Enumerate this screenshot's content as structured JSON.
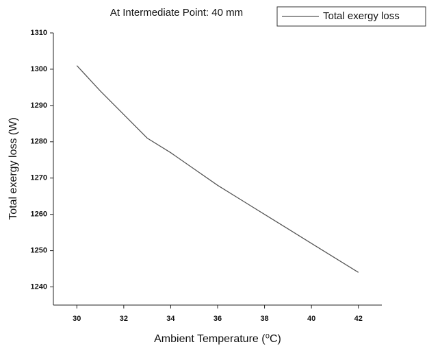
{
  "chart_data": {
    "type": "line",
    "title": "At Intermediate Point: 40 mm",
    "x_label": "Ambient Temperature (⁰C)",
    "y_label": "Total exergy loss (W)",
    "x": [
      30,
      31,
      32,
      33,
      34,
      35,
      36,
      37,
      38,
      39,
      40,
      41,
      42
    ],
    "series": [
      {
        "name": "Total exergy loss",
        "color": "#555555",
        "values": [
          1301,
          1294,
          1287.5,
          1281,
          1277,
          1272.5,
          1268,
          1264,
          1260,
          1256,
          1252,
          1248,
          1244
        ]
      }
    ],
    "xlim": [
      29,
      43
    ],
    "xticks": [
      30,
      32,
      34,
      36,
      38,
      40,
      42
    ],
    "ylim": [
      1235,
      1310
    ],
    "yticks": [
      1240,
      1250,
      1260,
      1270,
      1280,
      1290,
      1300,
      1310
    ],
    "legend": "top-right"
  }
}
